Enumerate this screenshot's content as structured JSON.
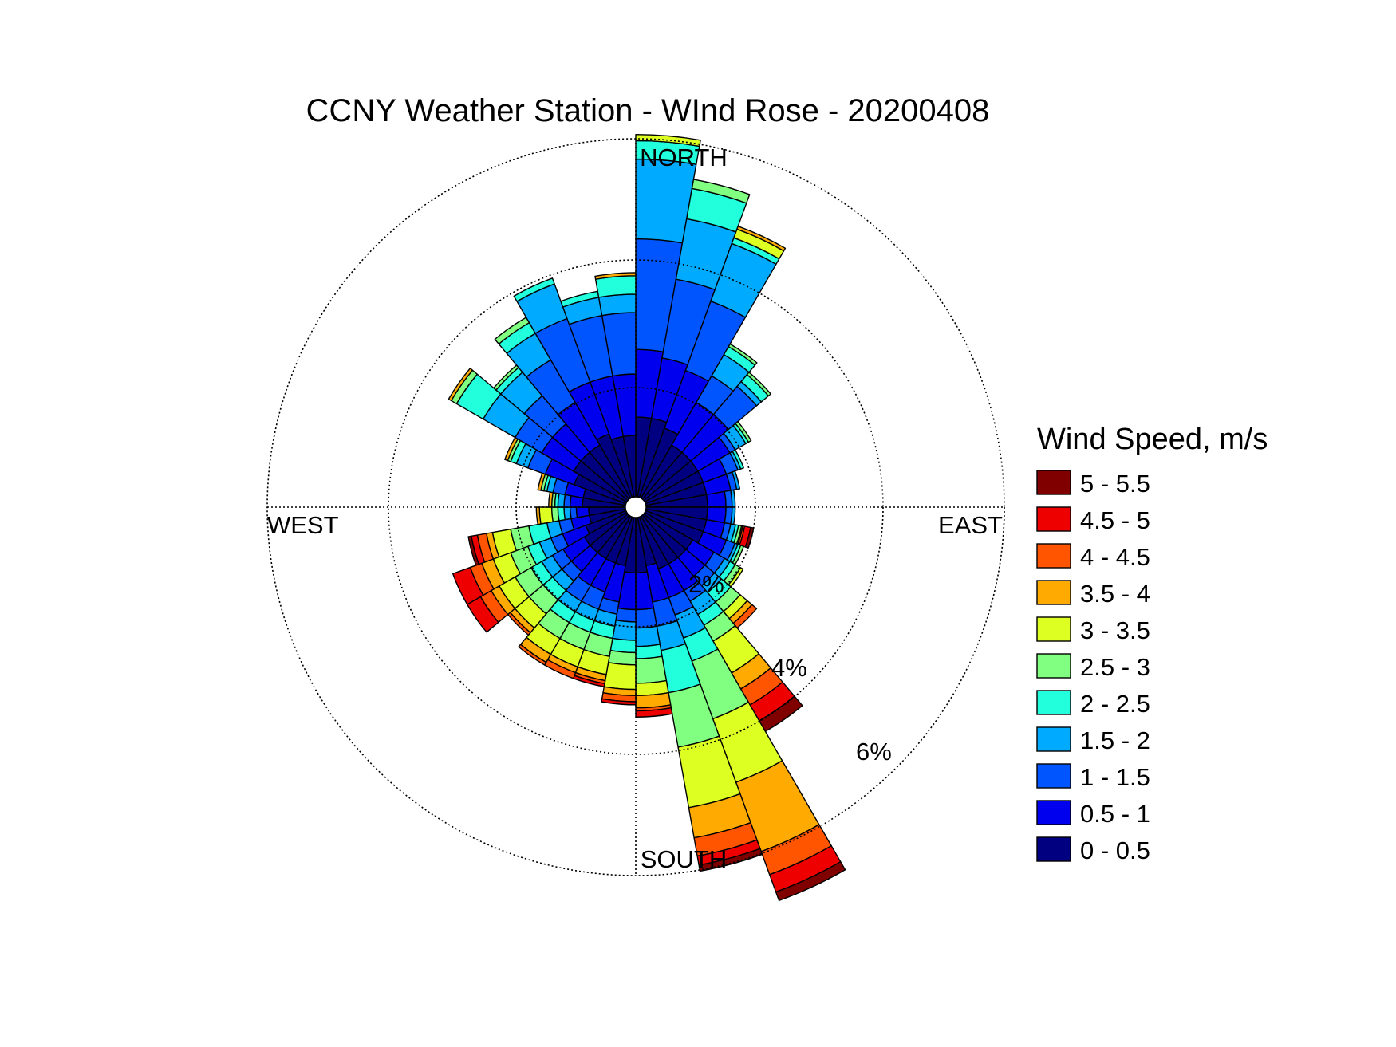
{
  "chart_data": {
    "type": "polar-bar",
    "title": "CCNY Weather Station - WInd Rose - 20200408",
    "direction_labels": {
      "north": "NORTH",
      "east": "EAST",
      "south": "SOUTH",
      "west": "WEST"
    },
    "ring_labels": [
      "2%",
      "4%",
      "6%"
    ],
    "radial_range": [
      0,
      6
    ],
    "legend_title": "Wind Speed, m/s",
    "bins": [
      {
        "label": "0 - 0.5",
        "color": "#000080"
      },
      {
        "label": "0.5 - 1",
        "color": "#0000EE"
      },
      {
        "label": "1 - 1.5",
        "color": "#0055FF"
      },
      {
        "label": "1.5 - 2",
        "color": "#00AAFF"
      },
      {
        "label": "2 - 2.5",
        "color": "#22FFDD"
      },
      {
        "label": "2.5 - 3",
        "color": "#80FF80"
      },
      {
        "label": "3 - 3.5",
        "color": "#DDFF22"
      },
      {
        "label": "3.5 - 4",
        "color": "#FFAA00"
      },
      {
        "label": "4 - 4.5",
        "color": "#FF5500"
      },
      {
        "label": "4.5 - 5",
        "color": "#EE0000"
      },
      {
        "label": "5 - 5.5",
        "color": "#800000"
      }
    ],
    "sector_width_deg": 10,
    "directions_deg": [
      5,
      15,
      25,
      35,
      45,
      55,
      65,
      75,
      85,
      95,
      105,
      115,
      125,
      135,
      145,
      155,
      165,
      175,
      185,
      195,
      205,
      215,
      225,
      235,
      245,
      255,
      265,
      275,
      285,
      295,
      305,
      315,
      325,
      335,
      345,
      355
    ],
    "frequencies_pct": [
      [
        1.3,
        1.1,
        1.8,
        1.3,
        0.3,
        0,
        0.1,
        0,
        0,
        0,
        0
      ],
      [
        1.3,
        1.0,
        1.3,
        1.0,
        0.5,
        0.15,
        0,
        0,
        0,
        0,
        0
      ],
      [
        1.2,
        1.0,
        1.2,
        1.0,
        0.1,
        0,
        0.15,
        0.05,
        0,
        0,
        0
      ],
      [
        1.0,
        0.8,
        0.5,
        0.4,
        0.15,
        0.05,
        0,
        0,
        0,
        0,
        0
      ],
      [
        1.0,
        0.8,
        0.6,
        0.1,
        0.15,
        0.05,
        0,
        0,
        0,
        0,
        0
      ],
      [
        1.0,
        0.6,
        0.1,
        0.2,
        0.05,
        0.05,
        0,
        0,
        0,
        0,
        0
      ],
      [
        1.0,
        0.4,
        0.2,
        0.05,
        0.05,
        0,
        0,
        0,
        0,
        0,
        0
      ],
      [
        1.0,
        0.4,
        0.1,
        0.05,
        0,
        0,
        0,
        0,
        0,
        0,
        0
      ],
      [
        1.0,
        0.3,
        0.1,
        0.05,
        0,
        0,
        0,
        0,
        0,
        0,
        0
      ],
      [
        1.0,
        0.3,
        0.1,
        0.05,
        0,
        0,
        0,
        0,
        0,
        0,
        0
      ],
      [
        1.0,
        0.3,
        0.1,
        0.08,
        0.05,
        0.05,
        0,
        0.02,
        0.03,
        0.1,
        0.05
      ],
      [
        1.0,
        0.4,
        0.15,
        0.05,
        0.05,
        0.05,
        0,
        0,
        0,
        0,
        0
      ],
      [
        0.9,
        0.4,
        0.2,
        0.1,
        0.1,
        0.1,
        0.05,
        0,
        0,
        0,
        0
      ],
      [
        0.9,
        0.4,
        0.2,
        0.15,
        0.2,
        0.2,
        0.15,
        0.1,
        0.1,
        0,
        0
      ],
      [
        0.9,
        0.5,
        0.2,
        0.25,
        0.2,
        0.3,
        0.6,
        0.3,
        0.3,
        0.3,
        0.2
      ],
      [
        0.9,
        0.5,
        0.3,
        0.4,
        0.4,
        1.0,
        1.1,
        1.2,
        0.4,
        0.3,
        0.15
      ],
      [
        0.8,
        0.6,
        0.4,
        0.4,
        0.7,
        0.9,
        1.0,
        0.5,
        0.3,
        0.15,
        0.1
      ],
      [
        0.9,
        0.6,
        0.3,
        0.3,
        0.2,
        0.4,
        0.2,
        0.2,
        0.05,
        0.1,
        0
      ],
      [
        0.9,
        0.6,
        0.2,
        0.3,
        0.2,
        0.2,
        0.4,
        0.1,
        0.1,
        0.05,
        0
      ],
      [
        0.8,
        0.6,
        0.2,
        0.2,
        0.2,
        0.3,
        0.3,
        0.1,
        0.05,
        0.05,
        0
      ],
      [
        0.8,
        0.5,
        0.3,
        0.2,
        0.2,
        0.3,
        0.3,
        0.1,
        0.1,
        0,
        0
      ],
      [
        0.8,
        0.5,
        0.3,
        0.2,
        0.2,
        0.3,
        0.3,
        0.15,
        0.05,
        0,
        0
      ],
      [
        0.8,
        0.4,
        0.2,
        0.2,
        0.2,
        0.3,
        0.3,
        0.1,
        0.05,
        0,
        0
      ],
      [
        0.8,
        0.4,
        0.2,
        0.2,
        0.2,
        0.3,
        0.3,
        0.15,
        0.2,
        0.25,
        0
      ],
      [
        0.7,
        0.4,
        0.2,
        0.2,
        0.2,
        0.3,
        0.3,
        0.2,
        0.2,
        0.3,
        0
      ],
      [
        0.6,
        0.3,
        0.2,
        0.2,
        0.3,
        0.3,
        0.3,
        0.1,
        0.15,
        0.1,
        0.05
      ],
      [
        0.6,
        0.2,
        0.1,
        0.1,
        0.1,
        0.1,
        0.2,
        0.05,
        0,
        0,
        0
      ],
      [
        0.7,
        0.2,
        0.1,
        0.1,
        0.05,
        0.05,
        0,
        0.05,
        0,
        0,
        0
      ],
      [
        0.7,
        0.3,
        0.2,
        0.1,
        0.05,
        0.05,
        0,
        0.05,
        0,
        0,
        0
      ],
      [
        0.9,
        0.5,
        0.3,
        0.2,
        0.1,
        0.05,
        0,
        0.05,
        0,
        0,
        0
      ],
      [
        1.0,
        0.6,
        0.5,
        0.6,
        0.5,
        0.1,
        0,
        0.05,
        0,
        0,
        0
      ],
      [
        1.0,
        0.6,
        0.6,
        0.5,
        0.1,
        0.05,
        0,
        0,
        0,
        0,
        0
      ],
      [
        1.0,
        0.8,
        0.8,
        0.5,
        0.2,
        0.1,
        0,
        0,
        0,
        0,
        0
      ],
      [
        1.1,
        0.9,
        1.1,
        0.6,
        0.1,
        0,
        0,
        0,
        0,
        0,
        0
      ],
      [
        1.0,
        1.0,
        1.0,
        0.3,
        0.1,
        0,
        0,
        0,
        0,
        0,
        0
      ],
      [
        1.0,
        1.0,
        1.0,
        0.3,
        0.3,
        0,
        0,
        0.05,
        0,
        0,
        0
      ]
    ]
  }
}
